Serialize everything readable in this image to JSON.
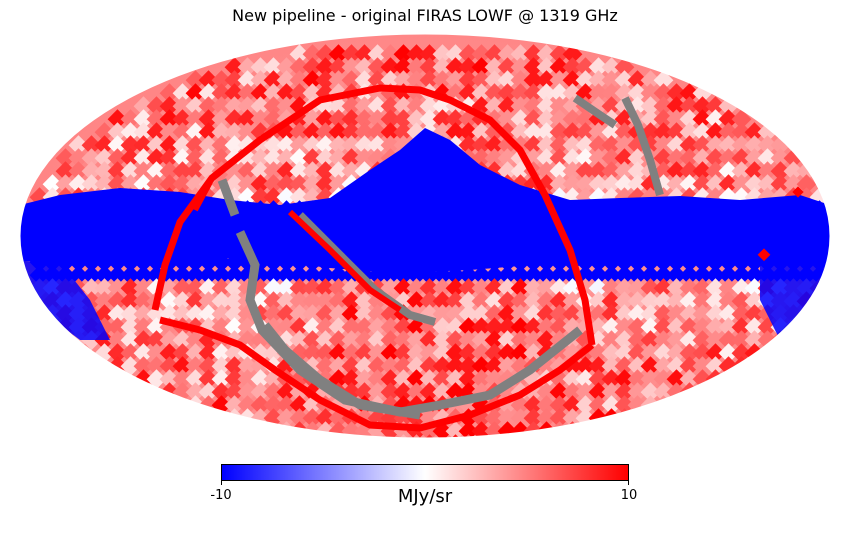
{
  "title": "New pipeline - original FIRAS LOWF @ 1319 GHz",
  "colorbar": {
    "min_label": "-10",
    "max_label": "10",
    "unit": "MJy/sr",
    "colormap": "bwr",
    "colors": {
      "low": "#0000ff",
      "mid": "#ffffff",
      "high": "#ff0000"
    }
  },
  "map": {
    "projection": "mollweide",
    "value_range": [
      -10,
      10
    ],
    "mask_color": "#808080",
    "outline_color": "#ff0000",
    "grid": false
  }
}
